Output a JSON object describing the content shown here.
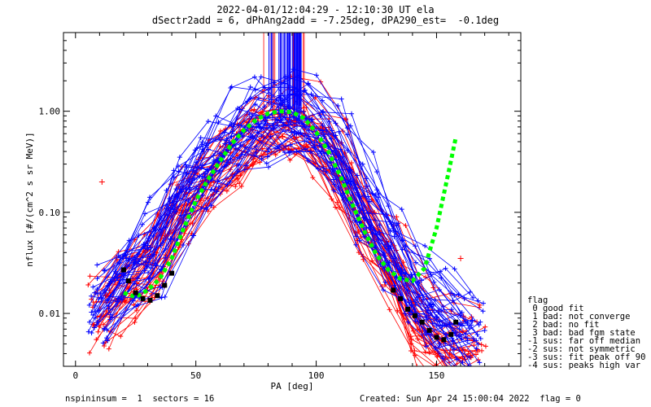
{
  "header": {
    "title_line1": "2022-04-01/12:04:29 - 12:10:30 UT ela",
    "title_line2": "dSectr2add = 6, dPhAng2add = -7.25deg, dPA290_est=  -0.1deg"
  },
  "footer": {
    "left": "nspininsum =  1  sectors = 16",
    "right": "Created: Sun Apr 24 15:00:04 2022  flag = 0"
  },
  "legend": {
    "title": "flag",
    "items": [
      " 0 good fit",
      " 1 bad: not converge",
      " 2 bad: no fit",
      " 3 bad: bad fgm state",
      "-1 sus: far off median",
      "-2 sus: not symmetric",
      "-3 sus: fit peak off 90",
      "-4 sus: peaks high var"
    ]
  },
  "colors": {
    "red_traces": "#ff0000",
    "blue_traces": "#0000ff",
    "fit_curve": "#00ff00",
    "median_points": "#000000"
  },
  "chart_data": {
    "type": "line",
    "title": "2022-04-01/12:04:29 - 12:10:30 UT ela",
    "subtitle": "dSectr2add = 6, dPhAng2add = -7.25deg, dPA290_est=  -0.1deg",
    "xlabel": "PA [deg]",
    "ylabel": "nflux [#/(cm^2 s sr MeV)]",
    "xlim": [
      -5,
      185
    ],
    "ylim": [
      0.003,
      6.0
    ],
    "yscale": "log",
    "xticks": [
      0,
      50,
      100,
      150
    ],
    "xtick_labels": [
      "0",
      "50",
      "100",
      "150"
    ],
    "yticks": [
      0.01,
      0.1,
      1.0
    ],
    "ytick_labels": [
      "0.01",
      "0.10",
      "1.00"
    ],
    "grid": false,
    "legend_position": "right",
    "series": [
      {
        "color": "#00ff00",
        "style": "dashed-thick",
        "x": [
          20,
          25,
          30,
          35,
          40,
          45,
          50,
          55,
          60,
          65,
          70,
          75,
          80,
          85,
          90,
          95,
          100,
          105,
          110,
          115,
          120,
          125,
          130,
          135,
          140,
          145,
          150,
          155,
          158
        ],
        "y": [
          0.016,
          0.0145,
          0.017,
          0.022,
          0.035,
          0.07,
          0.13,
          0.21,
          0.32,
          0.48,
          0.65,
          0.82,
          0.95,
          1.0,
          0.98,
          0.85,
          0.62,
          0.4,
          0.23,
          0.12,
          0.065,
          0.038,
          0.027,
          0.022,
          0.021,
          0.028,
          0.07,
          0.25,
          0.55
        ]
      },
      {
        "color": "#000000",
        "style": "dots",
        "x": [
          20,
          22,
          25,
          28,
          31,
          34,
          37,
          40,
          132,
          135,
          138,
          141,
          144,
          147,
          150,
          153,
          156,
          158
        ],
        "y": [
          0.027,
          0.021,
          0.016,
          0.014,
          0.0135,
          0.015,
          0.019,
          0.025,
          0.017,
          0.014,
          0.011,
          0.0095,
          0.0082,
          0.0068,
          0.0058,
          0.0055,
          0.0062,
          0.0082
        ]
      },
      {
        "color": "#ff0000",
        "style": "traces",
        "x": [
          11,
          22,
          33,
          44,
          55,
          66,
          77,
          88,
          99,
          110,
          121,
          132,
          143,
          154,
          165
        ],
        "y_center": [
          0.01,
          0.018,
          0.035,
          0.11,
          0.23,
          0.42,
          0.68,
          0.8,
          0.62,
          0.28,
          0.075,
          0.03,
          0.009,
          0.0055,
          0.005
        ],
        "trace_count": 35,
        "outliers": [
          {
            "x": 11,
            "y": 0.2
          },
          {
            "x": 160,
            "y": 0.035
          }
        ]
      },
      {
        "color": "#0000ff",
        "style": "traces",
        "x": [
          11,
          22,
          33,
          44,
          55,
          66,
          77,
          88,
          99,
          110,
          121,
          132,
          143,
          154,
          165
        ],
        "y_center": [
          0.011,
          0.025,
          0.045,
          0.15,
          0.3,
          0.55,
          0.85,
          0.95,
          0.8,
          0.4,
          0.12,
          0.045,
          0.015,
          0.009,
          0.006
        ],
        "trace_count": 40
      }
    ]
  }
}
